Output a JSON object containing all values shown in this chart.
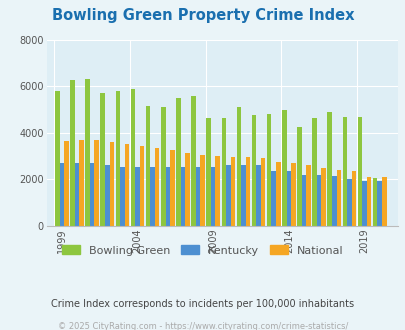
{
  "title": "Bowling Green Property Crime Index",
  "title_color": "#1a6faf",
  "years": [
    1999,
    2000,
    2001,
    2002,
    2003,
    2004,
    2005,
    2006,
    2007,
    2008,
    2009,
    2010,
    2011,
    2012,
    2013,
    2014,
    2015,
    2016,
    2017,
    2018,
    2019,
    2020
  ],
  "bowling_green": [
    5800,
    6250,
    6300,
    5700,
    5800,
    5900,
    5150,
    5100,
    5500,
    5600,
    4650,
    4650,
    5100,
    4750,
    4800,
    5000,
    4250,
    4650,
    4900,
    4700,
    4700,
    2050
  ],
  "kentucky": [
    2700,
    2700,
    2700,
    2600,
    2550,
    2550,
    2550,
    2550,
    2550,
    2550,
    2550,
    2600,
    2600,
    2600,
    2350,
    2350,
    2200,
    2200,
    2150,
    2000,
    1950,
    1950
  ],
  "national": [
    3650,
    3700,
    3700,
    3600,
    3500,
    3450,
    3350,
    3250,
    3150,
    3050,
    3000,
    2950,
    2950,
    2900,
    2750,
    2700,
    2600,
    2500,
    2400,
    2350,
    2100,
    2100
  ],
  "fig_bg_color": "#eaf4f8",
  "plot_bg": "#deeef5",
  "bar_color_bg": "#8dc63f",
  "bar_color_ky": "#4d8fd1",
  "bar_color_nat": "#f5a623",
  "ylim": [
    0,
    8000
  ],
  "yticks": [
    0,
    2000,
    4000,
    6000,
    8000
  ],
  "xtick_labels": [
    "1999",
    "2004",
    "2009",
    "2014",
    "2019"
  ],
  "xtick_positions": [
    1999,
    2004,
    2009,
    2014,
    2019
  ],
  "legend_labels": [
    "Bowling Green",
    "Kentucky",
    "National"
  ],
  "footnote1": "Crime Index corresponds to incidents per 100,000 inhabitants",
  "footnote2": "© 2025 CityRating.com - https://www.cityrating.com/crime-statistics/",
  "footnote1_color": "#444444",
  "footnote2_color": "#aaaaaa",
  "title_fontsize": 10.5,
  "tick_fontsize": 7,
  "legend_fontsize": 8,
  "footnote1_fontsize": 7,
  "footnote2_fontsize": 6
}
